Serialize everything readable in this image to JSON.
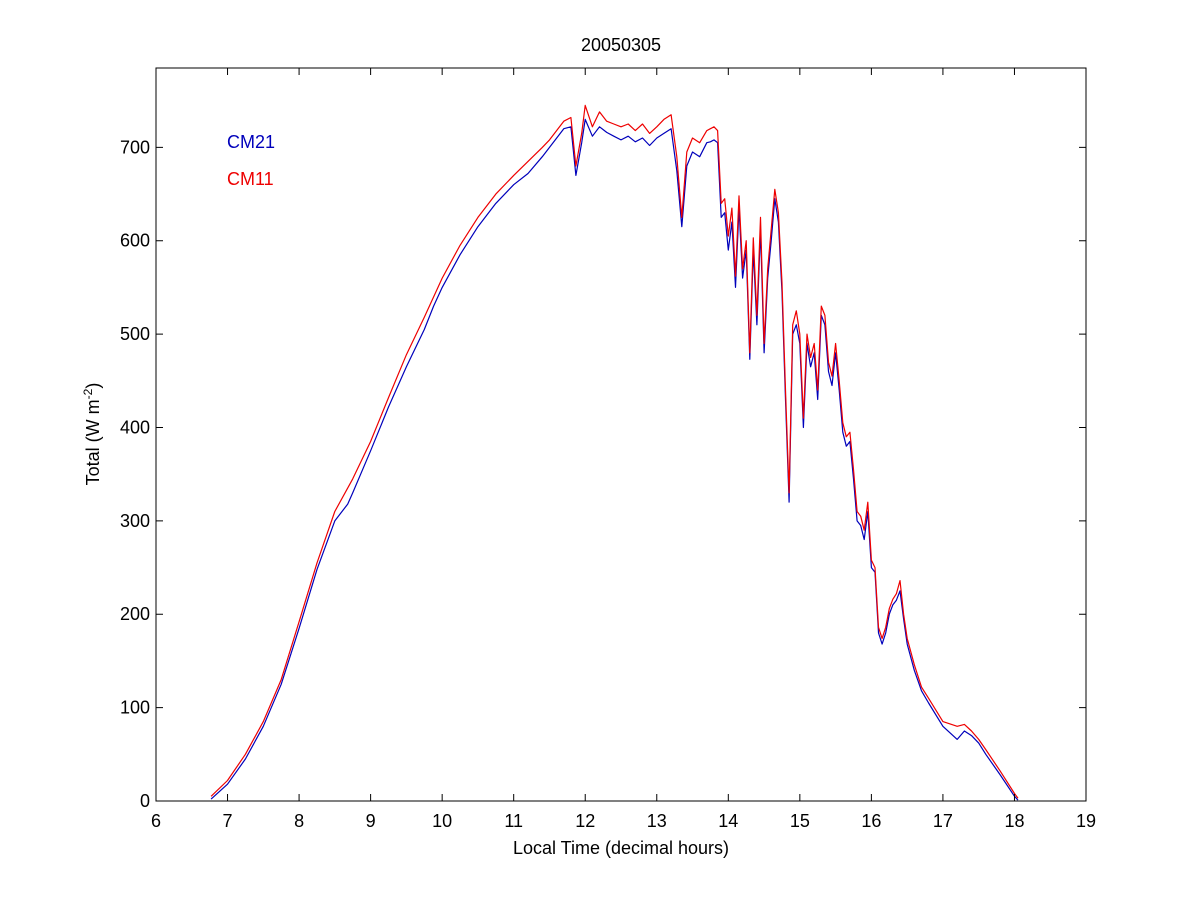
{
  "chart_data": {
    "type": "line",
    "title": "20050305",
    "xlabel": "Local Time (decimal hours)",
    "ylabel": {
      "base": "Total (W m",
      "superscript": "-2",
      "suffix": ")"
    },
    "xlim": [
      6,
      19
    ],
    "ylim": [
      0,
      785
    ],
    "xticks": [
      6,
      7,
      8,
      9,
      10,
      11,
      12,
      13,
      14,
      15,
      16,
      17,
      18,
      19
    ],
    "yticks": [
      0,
      100,
      200,
      300,
      400,
      500,
      600,
      700
    ],
    "grid": false,
    "legend_placement": "top-left",
    "series": [
      {
        "name": "CM21",
        "color": "#0000bb",
        "x": [
          6.77,
          7.0,
          7.25,
          7.5,
          7.75,
          8.0,
          8.25,
          8.5,
          8.68,
          8.75,
          9.0,
          9.25,
          9.5,
          9.75,
          9.88,
          10.0,
          10.25,
          10.5,
          10.75,
          11.0,
          11.2,
          11.4,
          11.5,
          11.7,
          11.8,
          11.87,
          11.95,
          12.0,
          12.1,
          12.2,
          12.3,
          12.4,
          12.5,
          12.6,
          12.7,
          12.8,
          12.9,
          13.0,
          13.1,
          13.2,
          13.28,
          13.35,
          13.42,
          13.5,
          13.6,
          13.7,
          13.75,
          13.8,
          13.85,
          13.9,
          13.95,
          14.0,
          14.05,
          14.1,
          14.15,
          14.2,
          14.25,
          14.3,
          14.35,
          14.4,
          14.45,
          14.5,
          14.55,
          14.6,
          14.65,
          14.7,
          14.75,
          14.8,
          14.85,
          14.9,
          14.95,
          15.0,
          15.05,
          15.1,
          15.15,
          15.2,
          15.25,
          15.3,
          15.35,
          15.4,
          15.45,
          15.5,
          15.55,
          15.6,
          15.65,
          15.7,
          15.75,
          15.8,
          15.85,
          15.9,
          15.95,
          16.0,
          16.05,
          16.1,
          16.15,
          16.2,
          16.25,
          16.3,
          16.35,
          16.4,
          16.45,
          16.5,
          16.6,
          16.7,
          16.8,
          17.0,
          17.2,
          17.3,
          17.4,
          17.5,
          17.6,
          17.8,
          18.0,
          18.05
        ],
        "y": [
          2,
          18,
          45,
          80,
          125,
          185,
          248,
          300,
          318,
          330,
          375,
          422,
          465,
          505,
          530,
          550,
          585,
          615,
          640,
          660,
          672,
          690,
          700,
          720,
          722,
          670,
          705,
          730,
          712,
          722,
          716,
          712,
          708,
          712,
          706,
          710,
          702,
          710,
          715,
          720,
          675,
          615,
          680,
          695,
          690,
          705,
          706,
          708,
          705,
          625,
          630,
          590,
          620,
          550,
          635,
          560,
          590,
          473,
          590,
          510,
          612,
          480,
          560,
          600,
          645,
          620,
          545,
          430,
          320,
          500,
          510,
          490,
          400,
          490,
          465,
          480,
          430,
          520,
          510,
          460,
          445,
          480,
          440,
          395,
          380,
          385,
          345,
          300,
          295,
          280,
          310,
          250,
          245,
          180,
          168,
          180,
          200,
          210,
          215,
          225,
          195,
          168,
          140,
          118,
          105,
          80,
          66,
          75,
          70,
          62,
          50,
          28,
          5,
          1
        ]
      },
      {
        "name": "CM11",
        "color": "#ee0000",
        "x": [
          6.77,
          7.0,
          7.25,
          7.5,
          7.75,
          8.0,
          8.25,
          8.5,
          8.75,
          9.0,
          9.25,
          9.5,
          9.75,
          10.0,
          10.25,
          10.5,
          10.75,
          11.0,
          11.2,
          11.4,
          11.5,
          11.7,
          11.8,
          11.87,
          11.95,
          12.0,
          12.1,
          12.2,
          12.3,
          12.4,
          12.5,
          12.6,
          12.7,
          12.8,
          12.9,
          13.0,
          13.1,
          13.2,
          13.28,
          13.35,
          13.42,
          13.5,
          13.6,
          13.7,
          13.75,
          13.8,
          13.85,
          13.9,
          13.95,
          14.0,
          14.05,
          14.1,
          14.15,
          14.2,
          14.25,
          14.3,
          14.35,
          14.4,
          14.45,
          14.5,
          14.55,
          14.6,
          14.65,
          14.7,
          14.75,
          14.8,
          14.85,
          14.9,
          14.95,
          15.0,
          15.05,
          15.1,
          15.15,
          15.2,
          15.25,
          15.3,
          15.35,
          15.4,
          15.45,
          15.5,
          15.55,
          15.6,
          15.65,
          15.7,
          15.75,
          15.8,
          15.85,
          15.9,
          15.95,
          16.0,
          16.05,
          16.1,
          16.15,
          16.2,
          16.25,
          16.3,
          16.35,
          16.4,
          16.45,
          16.5,
          16.6,
          16.7,
          16.8,
          17.0,
          17.2,
          17.3,
          17.4,
          17.5,
          17.6,
          17.8,
          18.0,
          18.05
        ],
        "y": [
          5,
          22,
          50,
          85,
          130,
          192,
          255,
          310,
          345,
          385,
          432,
          478,
          518,
          560,
          595,
          625,
          650,
          670,
          685,
          700,
          708,
          728,
          732,
          680,
          715,
          745,
          722,
          738,
          728,
          725,
          722,
          725,
          718,
          725,
          715,
          722,
          730,
          735,
          690,
          625,
          695,
          710,
          705,
          718,
          720,
          722,
          718,
          640,
          645,
          605,
          635,
          562,
          648,
          570,
          600,
          480,
          603,
          520,
          625,
          490,
          570,
          612,
          655,
          630,
          555,
          440,
          330,
          510,
          525,
          500,
          410,
          500,
          475,
          490,
          440,
          530,
          520,
          470,
          455,
          490,
          450,
          405,
          390,
          395,
          355,
          310,
          305,
          290,
          320,
          258,
          250,
          186,
          174,
          186,
          206,
          216,
          222,
          236,
          200,
          174,
          146,
          122,
          110,
          85,
          80,
          82,
          75,
          66,
          55,
          32,
          8,
          3
        ]
      }
    ]
  }
}
